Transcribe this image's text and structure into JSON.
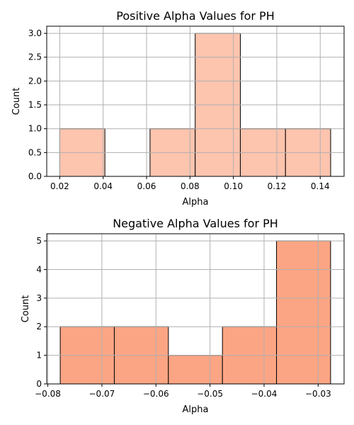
{
  "chart_data": [
    {
      "type": "bar",
      "title": "Positive Alpha Values for PH",
      "xlabel": "Alpha",
      "ylabel": "Count",
      "bin_edges": [
        0.02,
        0.0408,
        0.0616,
        0.0824,
        0.1032,
        0.124,
        0.1448
      ],
      "values": [
        1,
        0,
        1,
        3,
        1,
        1
      ],
      "xlim": [
        0.014,
        0.151
      ],
      "ylim": [
        0,
        3.15
      ],
      "xticks": [
        0.02,
        0.04,
        0.06,
        0.08,
        0.1,
        0.12,
        0.14
      ],
      "xtick_labels": [
        "0.02",
        "0.04",
        "0.06",
        "0.08",
        "0.10",
        "0.12",
        "0.14"
      ],
      "yticks": [
        0,
        0.5,
        1,
        1.5,
        2,
        2.5,
        3
      ],
      "ytick_labels": [
        "0.0",
        "0.5",
        "1.0",
        "1.5",
        "2.0",
        "2.5",
        "3.0"
      ],
      "grid": true,
      "color": "#fdc4ae"
    },
    {
      "type": "bar",
      "title": "Negative Alpha Values for PH",
      "xlabel": "Alpha",
      "ylabel": "Count",
      "bin_edges": [
        -0.0777,
        -0.0677,
        -0.0577,
        -0.0477,
        -0.0377,
        -0.0277
      ],
      "values": [
        2,
        2,
        1,
        2,
        5
      ],
      "xlim": [
        -0.0802,
        -0.0252
      ],
      "ylim": [
        0,
        5.25
      ],
      "xticks": [
        -0.08,
        -0.07,
        -0.06,
        -0.05,
        -0.04,
        -0.03
      ],
      "xtick_labels": [
        "−0.08",
        "−0.07",
        "−0.06",
        "−0.05",
        "−0.04",
        "−0.03"
      ],
      "yticks": [
        0,
        1,
        2,
        3,
        4,
        5
      ],
      "ytick_labels": [
        "0",
        "1",
        "2",
        "3",
        "4",
        "5"
      ],
      "grid": true,
      "color": "#fca584"
    }
  ]
}
